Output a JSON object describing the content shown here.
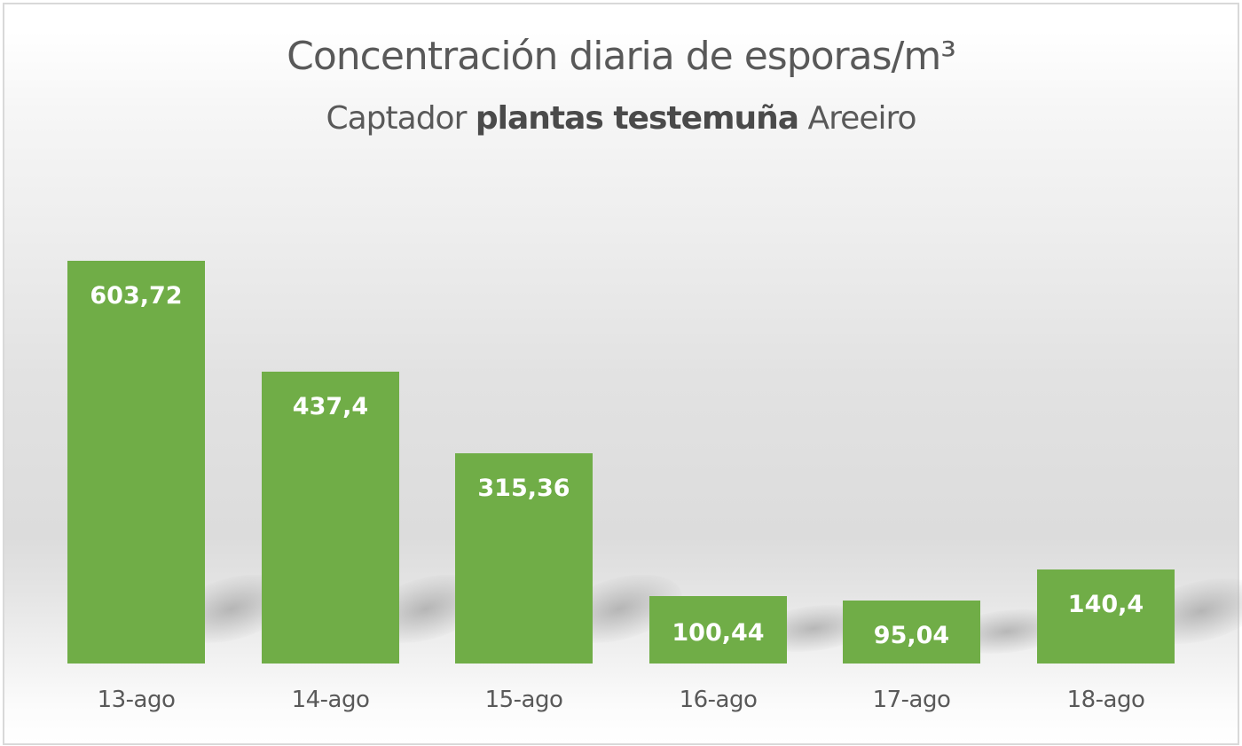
{
  "chart_data": {
    "type": "bar",
    "title": "Concentración diaria de esporas/m³",
    "subtitle": {
      "prefix": "Captador",
      "bold": "plantas testemuña",
      "suffix": "Areeiro"
    },
    "categories": [
      "13-ago",
      "14-ago",
      "15-ago",
      "16-ago",
      "17-ago",
      "18-ago"
    ],
    "values": [
      603.72,
      437.4,
      315.36,
      100.44,
      95.04,
      140.4
    ],
    "data_labels": [
      "603,72",
      "437,4",
      "315,36",
      "100,44",
      "95,04",
      "140,4"
    ],
    "xlabel": "",
    "ylabel": "",
    "ylim": [
      0,
      650
    ],
    "grid": false,
    "legend": "none",
    "bar_color": "#70ad47"
  }
}
